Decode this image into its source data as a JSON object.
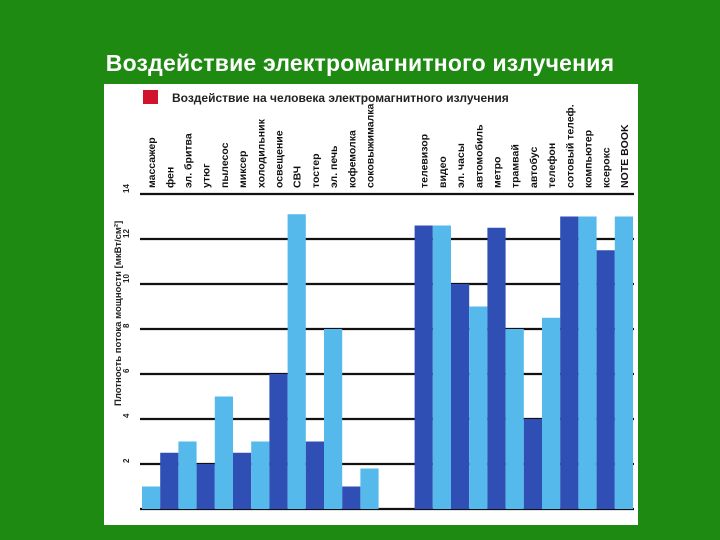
{
  "slide": {
    "title": "Воздействие электромагнитного излучения"
  },
  "colors": {
    "background": "#1f8a12",
    "dark_bar": "#2f4fb5",
    "light_bar": "#55b9ec",
    "legend_marker": "#d0142c",
    "grid": "#111111"
  },
  "chart_data": {
    "type": "bar",
    "title": "Воздействие на человека электромагнитного излучения",
    "ylabel": "Плотность потока мощности [мкВт/см²]",
    "xlabel": "",
    "ylim": [
      0,
      14
    ],
    "yticks": [
      2,
      4,
      6,
      8,
      10,
      12,
      14
    ],
    "grid": true,
    "categories": [
      "массажер",
      "фен",
      "эл. бритва",
      "утюг",
      "пылесос",
      "миксер",
      "холодильник",
      "освещение",
      "СВЧ",
      "тостер",
      "эл. печь",
      "кофемолка",
      "соковыжималка",
      "телевизор",
      "видео",
      "эл. часы",
      "автомобиль",
      "метро",
      "трамвай",
      "автобус",
      "телефон",
      "сотовый телеф.",
      "компьютер",
      "ксерокс",
      "NOTE BOOK"
    ],
    "values": [
      1,
      2.5,
      3,
      2,
      5,
      2.5,
      3,
      6,
      13.1,
      3,
      8,
      1,
      1.8,
      12.6,
      12.6,
      10,
      9,
      12.5,
      8,
      4,
      8.5,
      13,
      13,
      11.5,
      13
    ],
    "bar_shade": [
      "light",
      "dark",
      "light",
      "dark",
      "light",
      "dark",
      "light",
      "dark",
      "light",
      "dark",
      "light",
      "dark",
      "light",
      "dark",
      "light",
      "dark",
      "light",
      "dark",
      "light",
      "dark",
      "light",
      "dark",
      "light",
      "dark",
      "light"
    ],
    "gap_after_index": 12
  }
}
